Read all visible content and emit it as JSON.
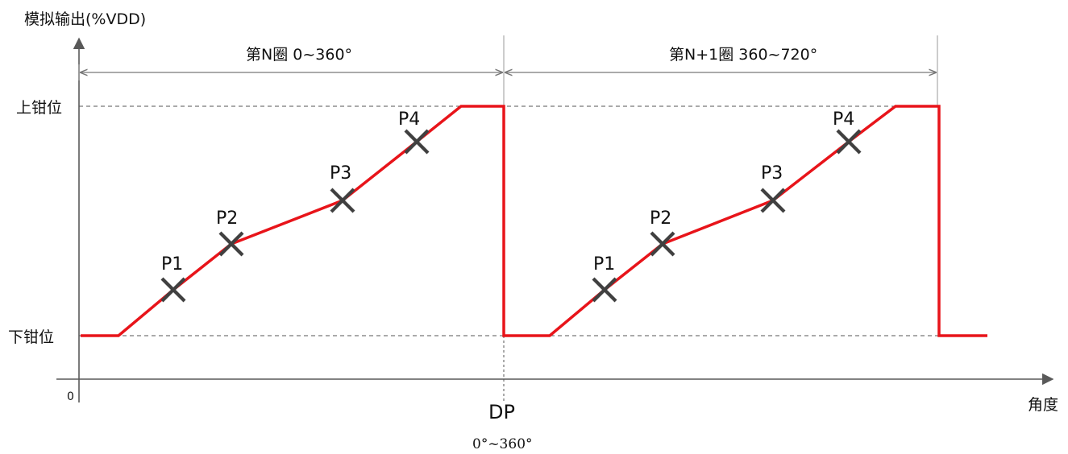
{
  "y_axis_label": "模拟输出(%VDD)",
  "x_axis_label": "角度",
  "origin_label": "0",
  "upper_clamp_label": "上钳位",
  "lower_clamp_label": "下钳位",
  "cycle_n_label": "第N圈 0~360°",
  "cycle_n1_label": "第N+1圈 360~720°",
  "dp_label": "DP",
  "dp_range_label": "0°~360°",
  "points": [
    "P1",
    "P2",
    "P3",
    "P4"
  ],
  "colors": {
    "signal": "#e8141a",
    "marker": "#404040",
    "axis": "#595959",
    "text": "#111111"
  }
}
